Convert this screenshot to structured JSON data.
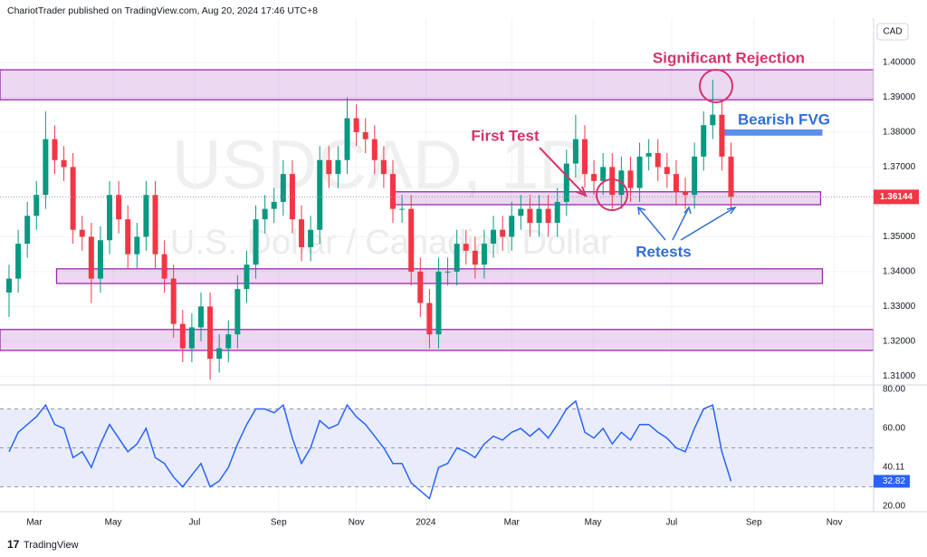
{
  "header": "ChariotTrader published on TradingView.com, Aug 20, 2024 17:46 UTC+8",
  "footer": "TradingView",
  "chart_data": [
    {
      "type": "candlestick",
      "symbol_watermark": "USDCAD, 1D",
      "name_watermark": "U.S. Dollar / Canadian Dollar",
      "currency": "CAD",
      "open": [
        1.334,
        1.338,
        1.348,
        1.356,
        1.362,
        1.378,
        1.372,
        1.37,
        1.352,
        1.35,
        1.338,
        1.349,
        1.362,
        1.355,
        1.345,
        1.35,
        1.362,
        1.345,
        1.338,
        1.325,
        1.318,
        1.324,
        1.33,
        1.315,
        1.318,
        1.322,
        1.335,
        1.342,
        1.355,
        1.358,
        1.36,
        1.368,
        1.355,
        1.347,
        1.352,
        1.372,
        1.368,
        1.372,
        1.384,
        1.38,
        1.378,
        1.372,
        1.368,
        1.358,
        1.358,
        1.34,
        1.331,
        1.322,
        1.34,
        1.34,
        1.348,
        1.346,
        1.342,
        1.348,
        1.352,
        1.35,
        1.356,
        1.358,
        1.354,
        1.358,
        1.354,
        1.36,
        1.371,
        1.378,
        1.368,
        1.366,
        1.37,
        1.362,
        1.369,
        1.364,
        1.373,
        1.374,
        1.37,
        1.368,
        1.363,
        1.362,
        1.373,
        1.382,
        1.385,
        1.373
      ],
      "high": [
        1.342,
        1.352,
        1.36,
        1.366,
        1.386,
        1.382,
        1.376,
        1.374,
        1.356,
        1.354,
        1.353,
        1.366,
        1.366,
        1.359,
        1.354,
        1.366,
        1.366,
        1.349,
        1.342,
        1.329,
        1.328,
        1.334,
        1.334,
        1.322,
        1.326,
        1.339,
        1.346,
        1.359,
        1.362,
        1.364,
        1.372,
        1.372,
        1.359,
        1.356,
        1.376,
        1.376,
        1.376,
        1.39,
        1.388,
        1.384,
        1.382,
        1.376,
        1.372,
        1.362,
        1.362,
        1.344,
        1.335,
        1.344,
        1.344,
        1.352,
        1.352,
        1.35,
        1.352,
        1.356,
        1.356,
        1.36,
        1.362,
        1.362,
        1.362,
        1.362,
        1.364,
        1.375,
        1.385,
        1.382,
        1.372,
        1.374,
        1.374,
        1.373,
        1.373,
        1.377,
        1.378,
        1.378,
        1.374,
        1.372,
        1.367,
        1.377,
        1.386,
        1.395,
        1.389,
        1.377
      ],
      "low": [
        1.327,
        1.334,
        1.344,
        1.352,
        1.358,
        1.368,
        1.366,
        1.348,
        1.346,
        1.331,
        1.334,
        1.345,
        1.351,
        1.341,
        1.341,
        1.346,
        1.341,
        1.334,
        1.321,
        1.314,
        1.314,
        1.32,
        1.309,
        1.311,
        1.314,
        1.318,
        1.331,
        1.338,
        1.351,
        1.354,
        1.356,
        1.351,
        1.343,
        1.343,
        1.348,
        1.364,
        1.364,
        1.368,
        1.376,
        1.374,
        1.368,
        1.364,
        1.354,
        1.354,
        1.336,
        1.327,
        1.318,
        1.318,
        1.336,
        1.336,
        1.342,
        1.338,
        1.338,
        1.344,
        1.346,
        1.346,
        1.352,
        1.35,
        1.35,
        1.35,
        1.35,
        1.356,
        1.367,
        1.364,
        1.362,
        1.362,
        1.358,
        1.358,
        1.36,
        1.36,
        1.369,
        1.366,
        1.364,
        1.359,
        1.358,
        1.358,
        1.369,
        1.378,
        1.369,
        1.358
      ],
      "close": [
        1.338,
        1.348,
        1.356,
        1.362,
        1.378,
        1.372,
        1.37,
        1.352,
        1.35,
        1.338,
        1.349,
        1.362,
        1.355,
        1.345,
        1.35,
        1.362,
        1.345,
        1.338,
        1.325,
        1.318,
        1.324,
        1.33,
        1.315,
        1.318,
        1.322,
        1.335,
        1.342,
        1.355,
        1.358,
        1.36,
        1.368,
        1.355,
        1.347,
        1.352,
        1.372,
        1.368,
        1.372,
        1.384,
        1.38,
        1.378,
        1.372,
        1.368,
        1.358,
        1.358,
        1.34,
        1.331,
        1.322,
        1.34,
        1.34,
        1.348,
        1.346,
        1.342,
        1.348,
        1.352,
        1.35,
        1.356,
        1.358,
        1.354,
        1.358,
        1.354,
        1.36,
        1.371,
        1.378,
        1.368,
        1.366,
        1.37,
        1.362,
        1.369,
        1.364,
        1.373,
        1.374,
        1.37,
        1.368,
        1.363,
        1.362,
        1.373,
        1.382,
        1.385,
        1.373,
        1.36144
      ],
      "colors": {
        "up": "#089981",
        "down": "#f23645",
        "last": "#f23645"
      },
      "xlim": [
        -0.99,
        94.6
      ],
      "xticks": [
        {
          "value": 2.77,
          "label": "Mar"
        },
        {
          "value": 11.4,
          "label": "May"
        },
        {
          "value": 20.3,
          "label": "Jul"
        },
        {
          "value": 29.5,
          "label": "Sep"
        },
        {
          "value": 38.0,
          "label": "Nov"
        },
        {
          "value": 45.6,
          "label": "2024"
        },
        {
          "value": 55.0,
          "label": "Mar"
        },
        {
          "value": 63.9,
          "label": "May"
        },
        {
          "value": 72.5,
          "label": "Jul"
        },
        {
          "value": 81.5,
          "label": "Sep"
        },
        {
          "value": 90.3,
          "label": "Nov"
        }
      ],
      "ylim": [
        1.3075,
        1.4122
      ],
      "yticks": [
        {
          "value": 1.4,
          "label": "1.40000"
        },
        {
          "value": 1.39,
          "label": "1.39000"
        },
        {
          "value": 1.38,
          "label": "1.38000"
        },
        {
          "value": 1.37,
          "label": "1.37000"
        },
        {
          "value": 1.35,
          "label": "1.35000"
        },
        {
          "value": 1.34,
          "label": "1.34000"
        },
        {
          "value": 1.33,
          "label": "1.33000"
        },
        {
          "value": 1.32,
          "label": "1.32000"
        },
        {
          "value": 1.31,
          "label": "1.31000"
        }
      ],
      "grid": true,
      "zones": [
        {
          "low": 1.3893,
          "high": 1.3979,
          "x": [
            -0.99,
            94.6
          ]
        },
        {
          "low": 1.3592,
          "high": 1.3629,
          "x": [
            41.9,
            88.8
          ]
        },
        {
          "low": 1.3366,
          "high": 1.3408,
          "x": [
            5.2,
            89.0
          ]
        },
        {
          "low": 1.3174,
          "high": 1.3234,
          "x": [
            -0.99,
            94.6
          ]
        }
      ],
      "zone_color": "#9c27b0",
      "fvg": {
        "low": 1.379,
        "high": 1.3808,
        "x": [
          77.7,
          89.0
        ],
        "color": "#5b8fe8"
      },
      "annotations": {
        "rejection": "Significant Rejection",
        "first_test": "First Test",
        "fvg": "Bearish FVG",
        "retests": "Retests"
      }
    },
    {
      "type": "line",
      "series": [
        {
          "color": "#2962ff",
          "values": [
            48,
            58,
            62,
            66,
            72,
            62,
            60,
            45,
            48,
            40,
            52,
            62,
            55,
            48,
            52,
            60,
            45,
            42,
            35,
            30,
            36,
            42,
            30,
            33,
            40,
            52,
            62,
            70,
            70,
            68,
            72,
            55,
            42,
            50,
            64,
            60,
            62,
            72,
            66,
            62,
            56,
            50,
            42,
            42,
            32,
            28,
            24,
            40,
            42,
            50,
            48,
            45,
            52,
            56,
            54,
            58,
            60,
            56,
            60,
            55,
            62,
            70,
            74,
            58,
            55,
            60,
            52,
            58,
            54,
            62,
            62,
            58,
            55,
            50,
            48,
            60,
            70,
            72,
            48,
            32.82
          ]
        }
      ],
      "ma_value": 40.11,
      "ylim": [
        17.2,
        82.3
      ],
      "yticks": [
        {
          "value": 80,
          "label": "80.00"
        },
        {
          "value": 60,
          "label": "60.00"
        },
        {
          "value": 20,
          "label": "20.00"
        }
      ],
      "band": [
        30,
        70
      ],
      "midline": 50,
      "band_color": "#e9edfb"
    }
  ]
}
